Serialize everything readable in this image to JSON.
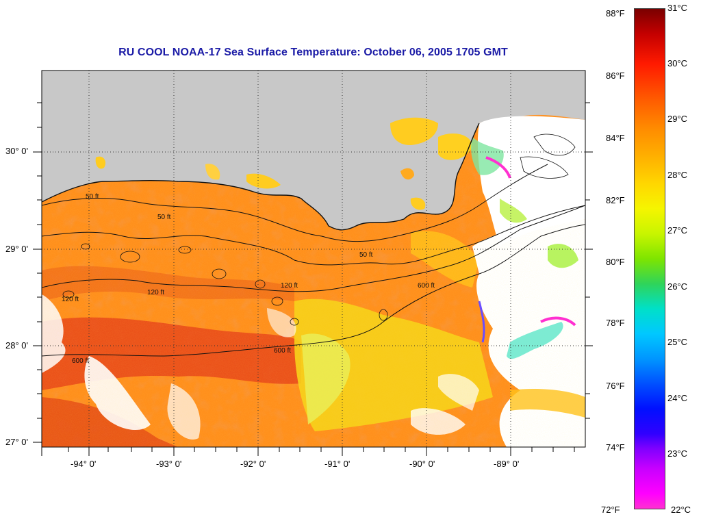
{
  "title": "RU COOL  NOAA-17  Sea Surface Temperature:  October 06, 2005 1705 GMT",
  "lat_labels": [
    "30° 0'",
    "29° 0'",
    "28° 0'",
    "27° 0'"
  ],
  "lon_labels": [
    "-94° 0'",
    "-93° 0'",
    "-92° 0'",
    "-91° 0'",
    "-90° 0'",
    "-89° 0'"
  ],
  "colorbar": {
    "fahrenheit_labels": [
      "88°F",
      "86°F",
      "84°F",
      "82°F",
      "80°F",
      "78°F",
      "76°F",
      "74°F",
      "72°F"
    ],
    "celsius_labels": [
      "31°C",
      "30°C",
      "29°C",
      "28°C",
      "27°C",
      "26°C",
      "25°C",
      "24°C",
      "23°C",
      "22°C"
    ]
  },
  "contour_labels": [
    "50 ft",
    "120 ft",
    "600 ft"
  ],
  "colors": {
    "title": "#1a1aa6",
    "land": "#c8c8c8",
    "warm_sst": "#ff8c1a",
    "hot_sst": "#e8400a",
    "cool_sst": "#f5e600",
    "cloud": "#ffffff"
  }
}
